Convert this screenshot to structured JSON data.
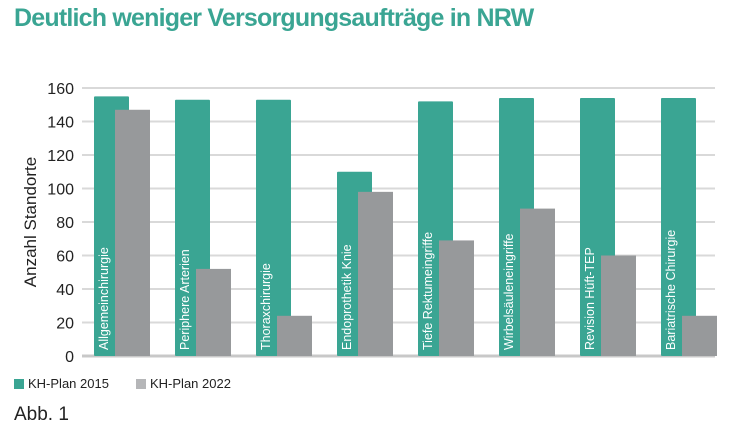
{
  "chart_data": {
    "type": "bar",
    "title": "Deutlich weniger Versorgungsaufträge in NRW",
    "ylabel": "Anzahl Standorte",
    "xlabel": "",
    "ylim": [
      0,
      160
    ],
    "yticks": [
      0,
      20,
      40,
      60,
      80,
      100,
      120,
      140,
      160
    ],
    "grid": true,
    "legend_position": "bottom-left",
    "categories": [
      "Allgemeinchirurgie",
      "Periphere Arterien",
      "Thoraxchirurgie",
      "Endoprothetik Knie",
      "Tiefe Rektumeingriffe",
      "Wirbelsäuleneingriffe",
      "Revision Hüft-TEP",
      "Bariatrische Chirurgie"
    ],
    "series": [
      {
        "name": "KH-Plan 2015",
        "color": "#3aa593",
        "values": [
          155,
          153,
          153,
          110,
          152,
          154,
          154,
          154
        ]
      },
      {
        "name": "KH-Plan 2022",
        "color": "#97999b",
        "values": [
          147,
          52,
          24,
          98,
          69,
          88,
          60,
          24
        ]
      }
    ]
  },
  "caption": "Abb. 1"
}
